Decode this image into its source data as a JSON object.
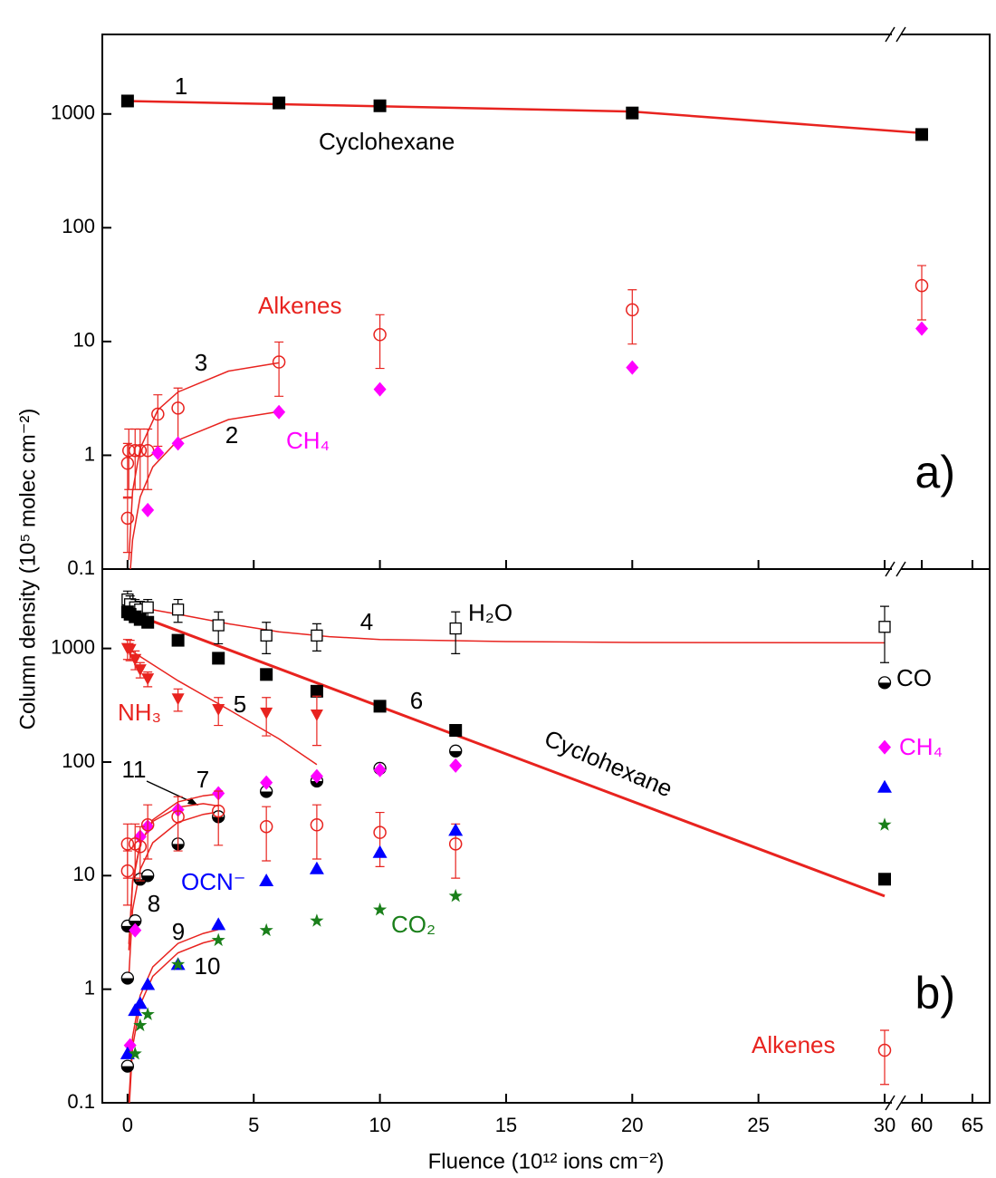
{
  "chart_data": [
    {
      "type": "scatter",
      "panel_label": "a)",
      "ylabel": "Column density (10⁵ molec cm⁻²)",
      "log_y": true,
      "ylim": [
        0.1,
        5000
      ],
      "yticks": [
        0.1,
        1,
        10,
        100,
        1000
      ],
      "xlim": [
        -1,
        66.7
      ],
      "xbreak": [
        30,
        60
      ],
      "series": [
        {
          "name": "Cyclohexane",
          "color": "#000000",
          "marker": "square",
          "x": [
            0,
            6,
            10,
            20,
            60
          ],
          "values": [
            1300,
            1250,
            1180,
            1020,
            660
          ]
        },
        {
          "name": "Alkenes",
          "color": "#e8231f",
          "marker": "circle-open",
          "x": [
            0,
            0,
            0.05,
            0.3,
            0.5,
            0.8,
            1.2,
            2,
            6,
            10,
            20,
            60
          ],
          "values": [
            0.28,
            0.85,
            1.1,
            1.1,
            1.1,
            1.1,
            2.3,
            2.6,
            6.6,
            11.5,
            19,
            31
          ],
          "errors": [
            0.14,
            0.42,
            0.6,
            0.6,
            0.6,
            0.6,
            1.1,
            1.3,
            3.3,
            5.7,
            9.5,
            15.5
          ]
        },
        {
          "name": "CH₄",
          "color": "#ff00ff",
          "marker": "diamond",
          "x": [
            0.8,
            1.2,
            2,
            6,
            10,
            20,
            60
          ],
          "values": [
            0.33,
            1.05,
            1.27,
            2.4,
            3.8,
            5.9,
            13
          ]
        }
      ],
      "fits": [
        {
          "label": "1",
          "color": "#e8231f",
          "width": 2.5,
          "x": [
            0,
            20,
            60
          ],
          "values": [
            1300,
            1050,
            680
          ]
        },
        {
          "label": "2",
          "color": "#e8231f",
          "width": 1.5,
          "x": [
            0.1,
            0.2,
            0.5,
            1,
            2,
            4,
            6
          ],
          "values": [
            0.092,
            0.18,
            0.43,
            0.79,
            1.36,
            2.06,
            2.42
          ]
        },
        {
          "label": "3",
          "color": "#e8231f",
          "width": 1.5,
          "x": [
            0.05,
            0.2,
            0.5,
            1.2,
            2,
            4,
            6
          ],
          "values": [
            0.12,
            0.48,
            1.15,
            2.5,
            3.6,
            5.5,
            6.5
          ]
        }
      ]
    },
    {
      "type": "scatter",
      "panel_label": "b)",
      "xlabel": "Fluence (10¹² ions cm⁻²)",
      "log_y": true,
      "ylim": [
        0.1,
        5000
      ],
      "yticks": [
        0.1,
        1,
        10,
        100,
        1000
      ],
      "xlim": [
        -1,
        66.7
      ],
      "xbreak": [
        30,
        60
      ],
      "xticks": [
        0,
        5,
        10,
        15,
        20,
        25,
        30,
        60,
        65
      ],
      "series": [
        {
          "name": "H₂O",
          "color": "#000000",
          "marker": "square-open",
          "x": [
            0,
            0.1,
            0.3,
            0.5,
            0.8,
            2,
            3.6,
            5.5,
            7.5,
            13,
            30
          ],
          "values": [
            2700,
            2450,
            2300,
            2200,
            2300,
            2200,
            1600,
            1300,
            1300,
            1500,
            1550
          ],
          "errors": [
            500,
            450,
            400,
            400,
            400,
            500,
            500,
            400,
            350,
            600,
            800
          ]
        },
        {
          "name": "Cyclohexane",
          "color": "#000000",
          "marker": "square",
          "x": [
            0,
            0.1,
            0.3,
            0.5,
            0.8,
            2,
            3.6,
            5.5,
            7.5,
            10,
            13,
            30
          ],
          "values": [
            2100,
            2000,
            1900,
            1800,
            1700,
            1180,
            820,
            590,
            420,
            310,
            190,
            9.3
          ]
        },
        {
          "name": "NH₃",
          "color": "#e8231f",
          "marker": "triangle-down",
          "x": [
            0,
            0.1,
            0.3,
            0.5,
            0.8,
            2,
            3.6,
            5.5,
            7.5
          ],
          "values": [
            1000,
            980,
            800,
            650,
            540,
            360,
            290,
            270,
            260
          ],
          "errors": [
            200,
            200,
            150,
            100,
            80,
            80,
            80,
            100,
            120
          ]
        },
        {
          "name": "CO",
          "color": "#000000",
          "marker": "half-circle",
          "x": [
            0,
            0,
            0,
            0.3,
            0.5,
            0.8,
            2,
            3.6,
            5.5,
            7.5,
            10,
            13,
            30
          ],
          "values": [
            0.21,
            1.25,
            3.6,
            4,
            9.3,
            10,
            19,
            33,
            55,
            68,
            88,
            125,
            500
          ]
        },
        {
          "name": "CH₄",
          "color": "#ff00ff",
          "marker": "diamond",
          "x": [
            0.1,
            0.3,
            0.5,
            0.8,
            2,
            3.6,
            5.5,
            7.5,
            10,
            13,
            30
          ],
          "values": [
            0.32,
            3.3,
            22,
            27,
            38,
            53,
            66,
            75,
            85,
            93,
            135
          ]
        },
        {
          "name": "Alkenes",
          "color": "#e8231f",
          "marker": "circle-open",
          "x": [
            0,
            0,
            0.3,
            0.5,
            0.8,
            2,
            3.6,
            5.5,
            7.5,
            10,
            13,
            30
          ],
          "values": [
            11,
            19,
            19,
            18,
            28,
            33,
            37,
            27,
            28,
            24,
            19,
            0.29
          ],
          "errors": [
            5.5,
            9.5,
            9.5,
            9,
            14,
            16.5,
            18.5,
            13.5,
            14,
            12,
            9.5,
            0.145
          ]
        },
        {
          "name": "OCN⁻",
          "color": "#0000ff",
          "marker": "triangle-up",
          "x": [
            0,
            0.3,
            0.5,
            0.8,
            2,
            3.6,
            5.5,
            7.5,
            10,
            13,
            30
          ],
          "values": [
            0.27,
            0.65,
            0.75,
            1.1,
            1.65,
            3.7,
            9,
            11.5,
            16,
            25,
            60
          ]
        },
        {
          "name": "CO₂",
          "color": "#1a7f1a",
          "marker": "star",
          "x": [
            0.3,
            0.5,
            0.8,
            2,
            3.6,
            5.5,
            7.5,
            10,
            13,
            30
          ],
          "values": [
            0.27,
            0.48,
            0.6,
            1.65,
            2.7,
            3.3,
            4,
            5,
            6.6,
            28
          ]
        }
      ],
      "fits": [
        {
          "label": "4",
          "color": "#e8231f",
          "width": 1.5,
          "x": [
            0,
            2,
            4,
            6,
            8,
            10,
            15,
            20,
            30
          ],
          "values": [
            2400,
            2000,
            1650,
            1400,
            1270,
            1200,
            1150,
            1130,
            1120
          ]
        },
        {
          "label": "5",
          "color": "#e8231f",
          "width": 1.5,
          "x": [
            0,
            2,
            4,
            6,
            7.5
          ],
          "values": [
            1000,
            520,
            290,
            160,
            95
          ]
        },
        {
          "label": "6",
          "color": "#e8231f",
          "width": 3,
          "x": [
            0,
            30
          ],
          "values": [
            2100,
            6.6
          ]
        },
        {
          "label": "7",
          "color": "#e8231f",
          "width": 1.5,
          "x": [
            0.05,
            0.2,
            0.5,
            1,
            2,
            3,
            3.6
          ],
          "values": [
            2.2,
            8.5,
            18.8,
            31,
            44.6,
            50.5,
            52.3
          ]
        },
        {
          "label": "8",
          "color": "#e8231f",
          "width": 1.5,
          "x": [
            0.05,
            0.2,
            0.5,
            1,
            2,
            3,
            3.6
          ],
          "values": [
            1.3,
            5,
            11.3,
            19.5,
            29.5,
            34.6,
            36.4
          ]
        },
        {
          "label": "9",
          "color": "#e8231f",
          "width": 1.5,
          "x": [
            0.05,
            0.2,
            0.5,
            1,
            2,
            3,
            3.6
          ],
          "values": [
            0.1,
            0.38,
            0.88,
            1.57,
            2.53,
            3.1,
            3.35
          ]
        },
        {
          "label": "10",
          "color": "#e8231f",
          "width": 1.5,
          "x": [
            0.05,
            0.2,
            0.5,
            1,
            2,
            3,
            3.6
          ],
          "values": [
            0.08,
            0.31,
            0.73,
            1.3,
            2.09,
            2.56,
            2.76
          ]
        },
        {
          "label": "11",
          "color": "#e8231f",
          "width": 1.5,
          "x": [
            0.05,
            0.2,
            0.5,
            1,
            2,
            3,
            3.6
          ],
          "values": [
            2.5,
            9,
            19,
            30,
            40,
            43,
            41
          ]
        }
      ]
    }
  ]
}
